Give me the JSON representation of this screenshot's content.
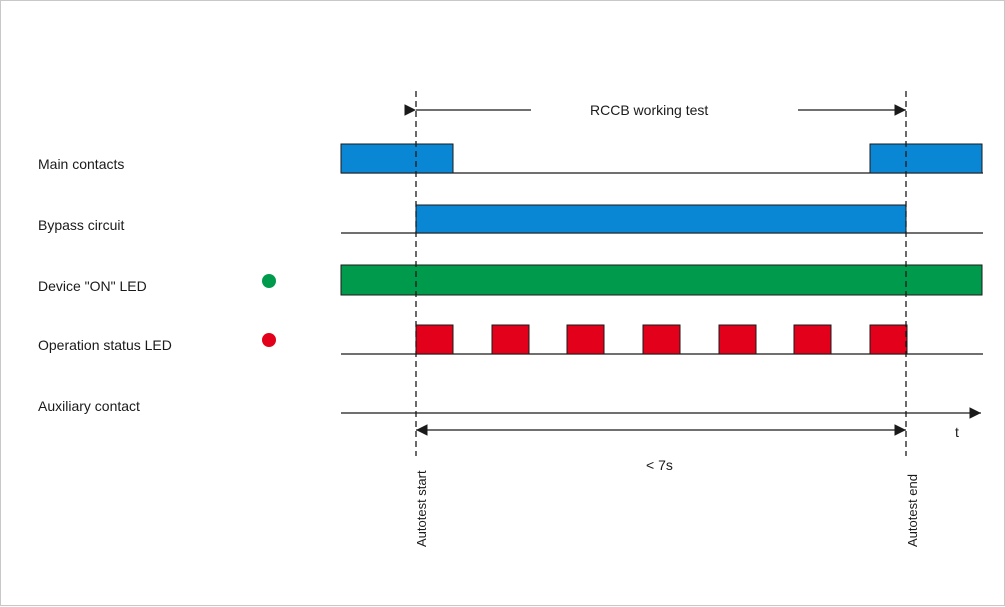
{
  "diagram": {
    "header_label": "RCCB working test",
    "duration_label": "< 7s",
    "time_axis_label": "t",
    "autotest_start_label": "Autotest start",
    "autotest_end_label": "Autotest end",
    "rows": [
      {
        "id": "main",
        "label": "Main contacts"
      },
      {
        "id": "bypass",
        "label": "Bypass circuit"
      },
      {
        "id": "device-on-led",
        "label": "Device \"ON\" LED",
        "led_color": "#009a4c"
      },
      {
        "id": "operation-led",
        "label": "Operation status LED",
        "led_color": "#e2001a"
      },
      {
        "id": "aux",
        "label": "Auxiliary contact"
      }
    ],
    "colors": {
      "contact": "#0a87d4",
      "on_led": "#009a4c",
      "status_led": "#e2001a"
    }
  }
}
